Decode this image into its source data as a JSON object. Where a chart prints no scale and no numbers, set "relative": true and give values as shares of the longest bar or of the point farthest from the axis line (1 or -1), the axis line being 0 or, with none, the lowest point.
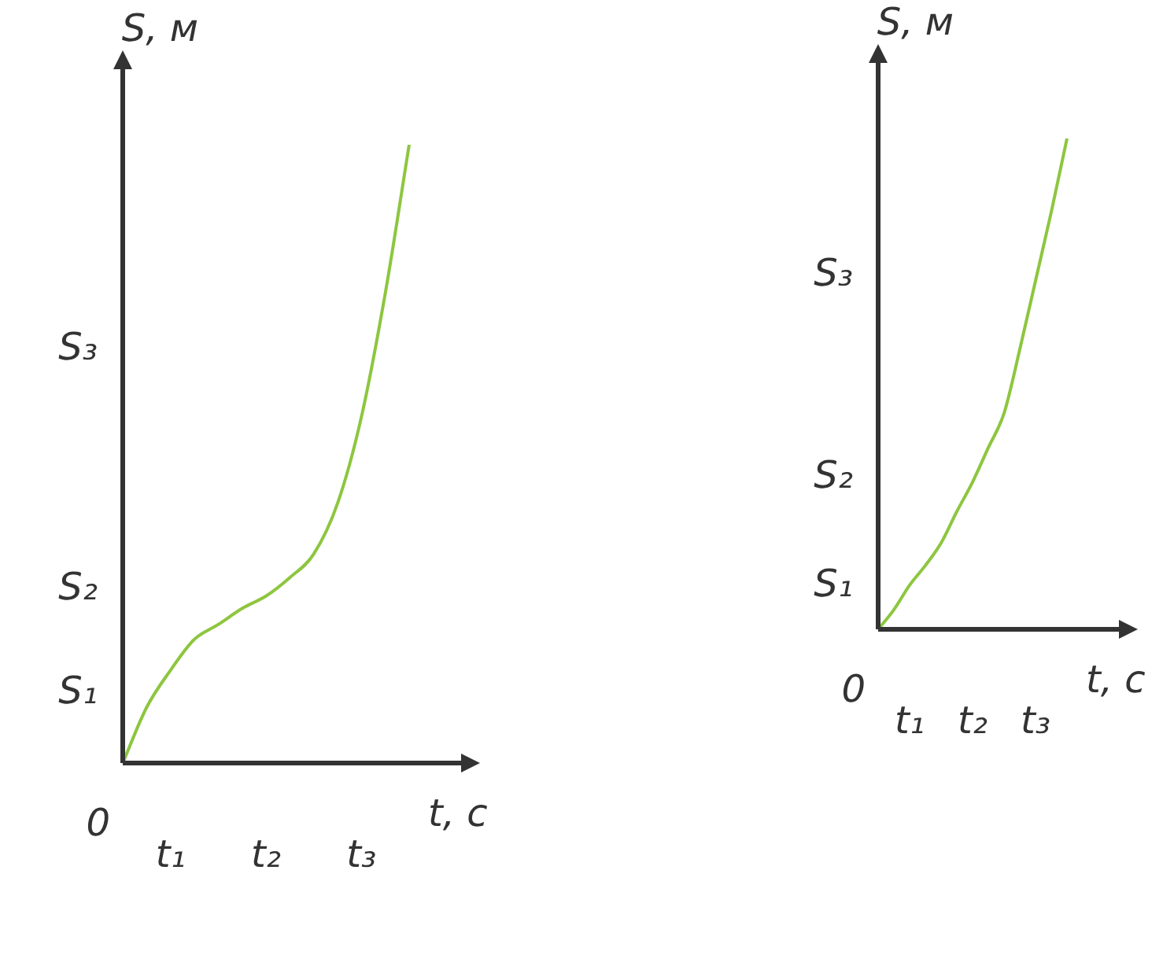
{
  "chart_data": [
    {
      "type": "line",
      "relative": true,
      "xlabel": "t, с",
      "ylabel": "S, м",
      "tick_labels": false,
      "legend": false,
      "marker": "none",
      "categories": [
        null,
        null,
        null,
        null,
        null,
        null,
        null,
        null,
        null,
        null,
        null,
        null,
        null
      ],
      "annotations": [
        "0",
        "S₁",
        "S₂",
        "S₃",
        "t₁",
        "t₂",
        "t₃"
      ],
      "series": [
        {
          "color": "#8dc63f",
          "values": [
            0,
            0.09,
            0.15,
            0.2,
            0.224,
            0.25,
            0.27,
            0.3,
            0.338,
            0.42,
            0.56,
            0.76,
            1
          ]
        }
      ]
    },
    {
      "type": "line",
      "relative": true,
      "xlabel": "t, с",
      "ylabel": "S, м",
      "tick_labels": false,
      "legend": false,
      "marker": "none",
      "categories": [
        null,
        null,
        null,
        null,
        null,
        null,
        null,
        null,
        null,
        null,
        null,
        null,
        null
      ],
      "annotations": [
        "0",
        "S₁",
        "S₂",
        "S₃",
        "t₁",
        "t₂",
        "t₃"
      ],
      "series": [
        {
          "color": "#8dc63f",
          "values": [
            0,
            0.04,
            0.09,
            0.13,
            0.176,
            0.24,
            0.3,
            0.37,
            0.44,
            0.57,
            0.71,
            0.85,
            1
          ]
        }
      ]
    }
  ]
}
